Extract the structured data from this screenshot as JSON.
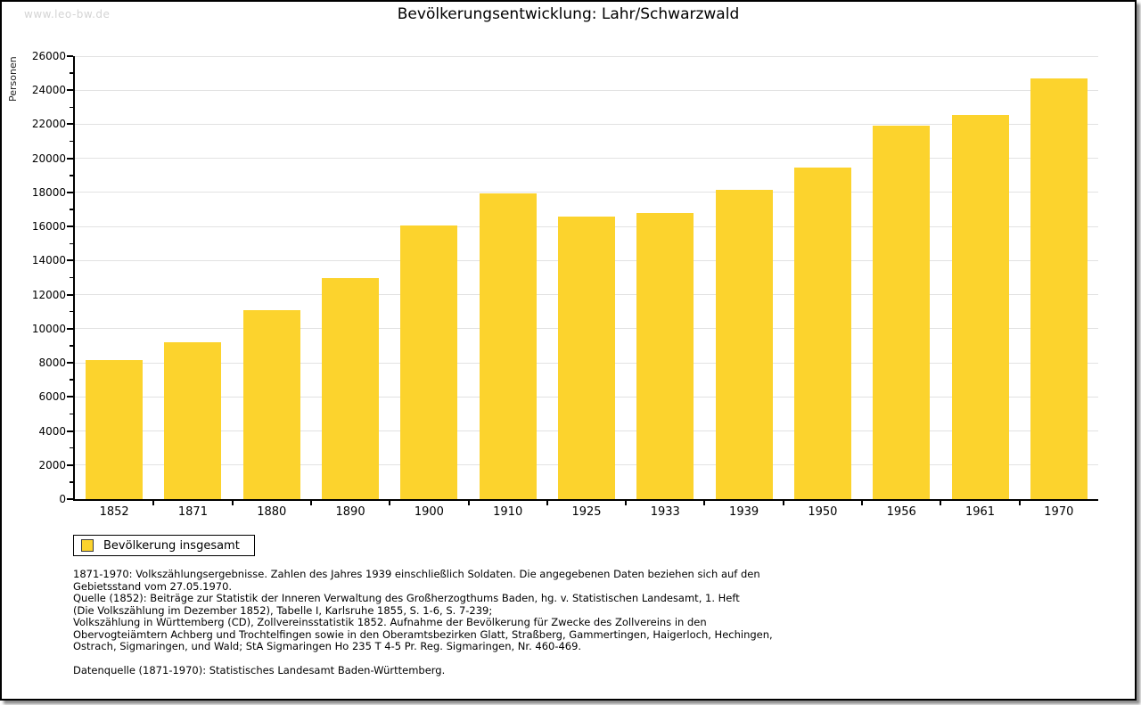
{
  "watermark": "www.leo-bw.de",
  "title": "Bevölkerungsentwicklung: Lahr/Schwarzwald",
  "chart_data": {
    "type": "bar",
    "title": "Bevölkerungsentwicklung: Lahr/Schwarzwald",
    "xlabel": "",
    "ylabel": "Personen",
    "categories": [
      "1852",
      "1871",
      "1880",
      "1890",
      "1900",
      "1910",
      "1925",
      "1933",
      "1939",
      "1950",
      "1956",
      "1961",
      "1970"
    ],
    "values": [
      8180,
      9190,
      11090,
      12960,
      16080,
      17940,
      16600,
      16810,
      18150,
      19460,
      21940,
      22570,
      24700
    ],
    "ylim": [
      0,
      26000
    ],
    "ytick_step": 2000,
    "yminor_step": 1000,
    "grid": true,
    "bar_color": "#FCD32D",
    "legend_position": "bottom-left",
    "legend_entries": [
      "Bevölkerung insgesamt"
    ]
  },
  "legend": {
    "label": "Bevölkerung insgesamt",
    "swatch_color": "#FCD32D"
  },
  "footnotes": {
    "lines": [
      "1871-1970: Volkszählungsergebnisse. Zahlen des Jahres 1939 einschließlich Soldaten. Die angegebenen Daten beziehen sich auf den",
      "Gebietsstand vom 27.05.1970.",
      "Quelle (1852): Beiträge zur Statistik der Inneren Verwaltung des Großherzogthums Baden, hg. v. Statistischen Landesamt, 1. Heft",
      "(Die Volkszählung im Dezember 1852), Tabelle I, Karlsruhe 1855, S. 1-6, S. 7-239;",
      "Volkszählung in Württemberg (CD), Zollvereinsstatistik 1852. Aufnahme der Bevölkerung für Zwecke des Zollvereins in den",
      "Obervogteiämtern Achberg und Trochtelfingen sowie in den Oberamtsbezirken Glatt, Straßberg, Gammertingen, Haigerloch, Hechingen,",
      "Ostrach, Sigmaringen, und Wald; StA Sigmaringen Ho 235 T 4-5 Pr. Reg. Sigmaringen, Nr. 460-469."
    ],
    "datasource": "Datenquelle (1871-1970): Statistisches Landesamt Baden-Württemberg."
  }
}
